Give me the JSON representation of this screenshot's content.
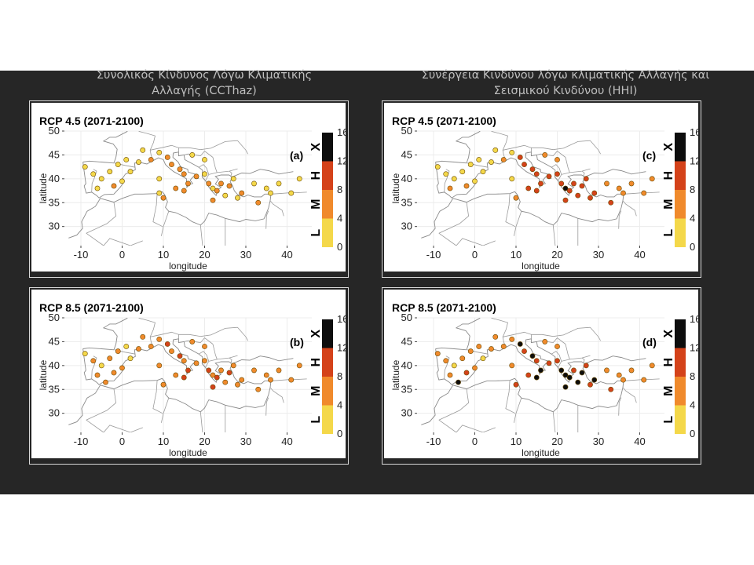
{
  "titles": {
    "left": "Συνολικός Κίνδυνος Λόγω Κλιματικής Αλλαγής (CCThaz)",
    "right": "Συνέργεια Κινδύνου λόγω κλιματικής Αλλαγής και Σεισμικού Κινδύνου (HHI)"
  },
  "chart_data": [
    {
      "type": "scatter",
      "panel": "(a)",
      "title": "RCP 4.5 (2071-2100)",
      "xlabel": "longitude",
      "ylabel": "latitude",
      "xlim": [
        -14,
        46
      ],
      "ylim": [
        26,
        50
      ],
      "xticks": [
        "-10",
        "0",
        "10",
        "20",
        "30",
        "40"
      ],
      "yticks": [
        "30",
        "35",
        "40",
        "45",
        "50"
      ],
      "scale": {
        "ticks": [
          "0",
          "4",
          "8",
          "12",
          "16"
        ],
        "classes": [
          "L",
          "M",
          "H",
          "X"
        ],
        "colors": [
          "#f4d84a",
          "#f08a2c",
          "#d4421a",
          "#0d0d0d"
        ]
      },
      "points": [
        {
          "x": -9,
          "y": 42.5,
          "v": 3
        },
        {
          "x": -7,
          "y": 41,
          "v": 3
        },
        {
          "x": -5,
          "y": 40,
          "v": 2
        },
        {
          "x": -3,
          "y": 41.5,
          "v": 3
        },
        {
          "x": -6,
          "y": 38,
          "v": 3
        },
        {
          "x": -2,
          "y": 38.5,
          "v": 5
        },
        {
          "x": 0,
          "y": 39.5,
          "v": 3
        },
        {
          "x": 2,
          "y": 41.5,
          "v": 2
        },
        {
          "x": 4,
          "y": 43.5,
          "v": 3
        },
        {
          "x": 7,
          "y": 44,
          "v": 5
        },
        {
          "x": 9,
          "y": 45.5,
          "v": 3
        },
        {
          "x": 11,
          "y": 44.5,
          "v": 6
        },
        {
          "x": 12,
          "y": 43,
          "v": 5
        },
        {
          "x": 14,
          "y": 42,
          "v": 6
        },
        {
          "x": 15,
          "y": 41,
          "v": 5
        },
        {
          "x": 16,
          "y": 39,
          "v": 6
        },
        {
          "x": 13,
          "y": 38,
          "v": 5
        },
        {
          "x": 15,
          "y": 37.5,
          "v": 6
        },
        {
          "x": 9,
          "y": 40,
          "v": 3
        },
        {
          "x": 9,
          "y": 37,
          "v": 3
        },
        {
          "x": 10,
          "y": 36,
          "v": 5
        },
        {
          "x": 18,
          "y": 40.5,
          "v": 5
        },
        {
          "x": 20,
          "y": 41,
          "v": 3
        },
        {
          "x": 21,
          "y": 39,
          "v": 5
        },
        {
          "x": 22,
          "y": 38,
          "v": 3
        },
        {
          "x": 23,
          "y": 37.5,
          "v": 5
        },
        {
          "x": 24,
          "y": 39,
          "v": 5
        },
        {
          "x": 25,
          "y": 36.5,
          "v": 3
        },
        {
          "x": 26,
          "y": 38.5,
          "v": 6
        },
        {
          "x": 27,
          "y": 40,
          "v": 3
        },
        {
          "x": 29,
          "y": 37,
          "v": 5
        },
        {
          "x": 32,
          "y": 39,
          "v": 3
        },
        {
          "x": 35,
          "y": 38,
          "v": 3
        },
        {
          "x": 38,
          "y": 39,
          "v": 3
        },
        {
          "x": 41,
          "y": 37,
          "v": 3
        },
        {
          "x": 28,
          "y": 36,
          "v": 3
        },
        {
          "x": 33,
          "y": 35,
          "v": 5
        },
        {
          "x": 36,
          "y": 37,
          "v": 3
        },
        {
          "x": 22,
          "y": 35.5,
          "v": 5
        },
        {
          "x": 20,
          "y": 44,
          "v": 3
        },
        {
          "x": 17,
          "y": 45,
          "v": 3
        },
        {
          "x": 5,
          "y": 46,
          "v": 3
        },
        {
          "x": 1,
          "y": 44,
          "v": 2
        },
        {
          "x": -1,
          "y": 43,
          "v": 3
        },
        {
          "x": 43,
          "y": 40,
          "v": 3
        }
      ]
    },
    {
      "type": "scatter",
      "panel": "(b)",
      "title": "RCP 8.5 (2071-2100)",
      "xlabel": "longitude",
      "ylabel": "latitude",
      "xlim": [
        -14,
        46
      ],
      "ylim": [
        26,
        50
      ],
      "xticks": [
        "-10",
        "0",
        "10",
        "20",
        "30",
        "40"
      ],
      "yticks": [
        "30",
        "35",
        "40",
        "45",
        "50"
      ],
      "scale": {
        "ticks": [
          "0",
          "4",
          "8",
          "12",
          "16"
        ],
        "classes": [
          "L",
          "M",
          "H",
          "X"
        ],
        "colors": [
          "#f4d84a",
          "#f08a2c",
          "#d4421a",
          "#0d0d0d"
        ]
      },
      "points": [
        {
          "x": -9,
          "y": 42.5,
          "v": 3
        },
        {
          "x": -7,
          "y": 41,
          "v": 5
        },
        {
          "x": -5,
          "y": 40,
          "v": 3
        },
        {
          "x": -3,
          "y": 41.5,
          "v": 5
        },
        {
          "x": -6,
          "y": 38,
          "v": 5
        },
        {
          "x": -2,
          "y": 38.5,
          "v": 6
        },
        {
          "x": -4,
          "y": 36.5,
          "v": 6
        },
        {
          "x": 0,
          "y": 39.5,
          "v": 5
        },
        {
          "x": 2,
          "y": 41.5,
          "v": 3
        },
        {
          "x": 4,
          "y": 43.5,
          "v": 5
        },
        {
          "x": 7,
          "y": 44,
          "v": 6
        },
        {
          "x": 9,
          "y": 45.5,
          "v": 5
        },
        {
          "x": 11,
          "y": 44.5,
          "v": 9
        },
        {
          "x": 12,
          "y": 43,
          "v": 6
        },
        {
          "x": 14,
          "y": 42,
          "v": 9
        },
        {
          "x": 15,
          "y": 41,
          "v": 6
        },
        {
          "x": 16,
          "y": 39,
          "v": 9
        },
        {
          "x": 13,
          "y": 38,
          "v": 6
        },
        {
          "x": 15,
          "y": 37.5,
          "v": 9
        },
        {
          "x": 9,
          "y": 40,
          "v": 5
        },
        {
          "x": 10,
          "y": 36,
          "v": 6
        },
        {
          "x": 18,
          "y": 40.5,
          "v": 6
        },
        {
          "x": 20,
          "y": 41,
          "v": 5
        },
        {
          "x": 21,
          "y": 39,
          "v": 9
        },
        {
          "x": 22,
          "y": 38,
          "v": 6
        },
        {
          "x": 23,
          "y": 37.5,
          "v": 9
        },
        {
          "x": 24,
          "y": 39,
          "v": 6
        },
        {
          "x": 25,
          "y": 36.5,
          "v": 5
        },
        {
          "x": 26,
          "y": 38.5,
          "v": 9
        },
        {
          "x": 27,
          "y": 40,
          "v": 5
        },
        {
          "x": 29,
          "y": 37,
          "v": 6
        },
        {
          "x": 32,
          "y": 39,
          "v": 5
        },
        {
          "x": 35,
          "y": 38,
          "v": 5
        },
        {
          "x": 38,
          "y": 39,
          "v": 5
        },
        {
          "x": 41,
          "y": 37,
          "v": 5
        },
        {
          "x": 28,
          "y": 36,
          "v": 5
        },
        {
          "x": 33,
          "y": 35,
          "v": 6
        },
        {
          "x": 36,
          "y": 37,
          "v": 5
        },
        {
          "x": 22,
          "y": 35.5,
          "v": 9
        },
        {
          "x": 20,
          "y": 44,
          "v": 5
        },
        {
          "x": 17,
          "y": 45,
          "v": 5
        },
        {
          "x": 5,
          "y": 46,
          "v": 5
        },
        {
          "x": 1,
          "y": 44,
          "v": 3
        },
        {
          "x": -1,
          "y": 43,
          "v": 5
        },
        {
          "x": 43,
          "y": 40,
          "v": 5
        }
      ]
    },
    {
      "type": "scatter",
      "panel": "(c)",
      "title": "RCP 4.5 (2071-2100)",
      "xlabel": "longitude",
      "ylabel": "latitude",
      "xlim": [
        -14,
        46
      ],
      "ylim": [
        26,
        50
      ],
      "xticks": [
        "-10",
        "0",
        "10",
        "20",
        "30",
        "40"
      ],
      "yticks": [
        "30",
        "35",
        "40",
        "45",
        "50"
      ],
      "scale": {
        "ticks": [
          "0",
          "4",
          "8",
          "12",
          "16"
        ],
        "classes": [
          "L",
          "M",
          "H",
          "X"
        ],
        "colors": [
          "#f4d84a",
          "#f08a2c",
          "#d4421a",
          "#0d0d0d"
        ]
      },
      "points": [
        {
          "x": -9,
          "y": 42.5,
          "v": 3
        },
        {
          "x": -7,
          "y": 41,
          "v": 3
        },
        {
          "x": -5,
          "y": 40,
          "v": 2
        },
        {
          "x": -3,
          "y": 41.5,
          "v": 3
        },
        {
          "x": -6,
          "y": 38,
          "v": 5
        },
        {
          "x": -2,
          "y": 38.5,
          "v": 5
        },
        {
          "x": 0,
          "y": 39.5,
          "v": 3
        },
        {
          "x": 2,
          "y": 41.5,
          "v": 3
        },
        {
          "x": 4,
          "y": 43.5,
          "v": 3
        },
        {
          "x": 7,
          "y": 44,
          "v": 5
        },
        {
          "x": 9,
          "y": 45.5,
          "v": 3
        },
        {
          "x": 11,
          "y": 44.5,
          "v": 9
        },
        {
          "x": 12,
          "y": 43,
          "v": 9
        },
        {
          "x": 14,
          "y": 42,
          "v": 9
        },
        {
          "x": 15,
          "y": 41,
          "v": 9
        },
        {
          "x": 16,
          "y": 39,
          "v": 9
        },
        {
          "x": 13,
          "y": 38,
          "v": 9
        },
        {
          "x": 15,
          "y": 37.5,
          "v": 9
        },
        {
          "x": 9,
          "y": 40,
          "v": 3
        },
        {
          "x": 10,
          "y": 36,
          "v": 5
        },
        {
          "x": 18,
          "y": 40.5,
          "v": 9
        },
        {
          "x": 20,
          "y": 41,
          "v": 9
        },
        {
          "x": 21,
          "y": 39,
          "v": 9
        },
        {
          "x": 22,
          "y": 38,
          "v": 13
        },
        {
          "x": 23,
          "y": 37.5,
          "v": 9
        },
        {
          "x": 24,
          "y": 39,
          "v": 9
        },
        {
          "x": 25,
          "y": 36.5,
          "v": 9
        },
        {
          "x": 26,
          "y": 38.5,
          "v": 9
        },
        {
          "x": 27,
          "y": 40,
          "v": 9
        },
        {
          "x": 29,
          "y": 37,
          "v": 9
        },
        {
          "x": 32,
          "y": 39,
          "v": 5
        },
        {
          "x": 35,
          "y": 38,
          "v": 5
        },
        {
          "x": 38,
          "y": 39,
          "v": 5
        },
        {
          "x": 41,
          "y": 37,
          "v": 5
        },
        {
          "x": 28,
          "y": 36,
          "v": 9
        },
        {
          "x": 33,
          "y": 35,
          "v": 9
        },
        {
          "x": 36,
          "y": 37,
          "v": 5
        },
        {
          "x": 22,
          "y": 35.5,
          "v": 9
        },
        {
          "x": 20,
          "y": 44,
          "v": 5
        },
        {
          "x": 17,
          "y": 45,
          "v": 5
        },
        {
          "x": 5,
          "y": 46,
          "v": 3
        },
        {
          "x": 1,
          "y": 44,
          "v": 3
        },
        {
          "x": -1,
          "y": 43,
          "v": 3
        },
        {
          "x": 43,
          "y": 40,
          "v": 5
        }
      ]
    },
    {
      "type": "scatter",
      "panel": "(d)",
      "title": "RCP 8.5 (2071-2100)",
      "xlabel": "longitude",
      "ylabel": "latitude",
      "xlim": [
        -14,
        46
      ],
      "ylim": [
        26,
        50
      ],
      "xticks": [
        "-10",
        "0",
        "10",
        "20",
        "30",
        "40"
      ],
      "yticks": [
        "30",
        "35",
        "40",
        "45",
        "50"
      ],
      "scale": {
        "ticks": [
          "0",
          "4",
          "8",
          "12",
          "16"
        ],
        "classes": [
          "L",
          "M",
          "H",
          "X"
        ],
        "colors": [
          "#f4d84a",
          "#f08a2c",
          "#d4421a",
          "#0d0d0d"
        ]
      },
      "points": [
        {
          "x": -9,
          "y": 42.5,
          "v": 5
        },
        {
          "x": -7,
          "y": 41,
          "v": 5
        },
        {
          "x": -5,
          "y": 40,
          "v": 3
        },
        {
          "x": -3,
          "y": 41.5,
          "v": 5
        },
        {
          "x": -6,
          "y": 38,
          "v": 6
        },
        {
          "x": -2,
          "y": 38.5,
          "v": 9
        },
        {
          "x": -4,
          "y": 36.5,
          "v": 13
        },
        {
          "x": 0,
          "y": 39.5,
          "v": 5
        },
        {
          "x": 2,
          "y": 41.5,
          "v": 3
        },
        {
          "x": 4,
          "y": 43.5,
          "v": 5
        },
        {
          "x": 7,
          "y": 44,
          "v": 6
        },
        {
          "x": 9,
          "y": 45.5,
          "v": 5
        },
        {
          "x": 11,
          "y": 44.5,
          "v": 13
        },
        {
          "x": 12,
          "y": 43,
          "v": 9
        },
        {
          "x": 14,
          "y": 42,
          "v": 13
        },
        {
          "x": 15,
          "y": 41,
          "v": 9
        },
        {
          "x": 16,
          "y": 39,
          "v": 13
        },
        {
          "x": 13,
          "y": 38,
          "v": 9
        },
        {
          "x": 15,
          "y": 37.5,
          "v": 13
        },
        {
          "x": 9,
          "y": 40,
          "v": 5
        },
        {
          "x": 10,
          "y": 36,
          "v": 9
        },
        {
          "x": 18,
          "y": 40.5,
          "v": 9
        },
        {
          "x": 20,
          "y": 41,
          "v": 9
        },
        {
          "x": 21,
          "y": 39,
          "v": 13
        },
        {
          "x": 22,
          "y": 38,
          "v": 13
        },
        {
          "x": 23,
          "y": 37.5,
          "v": 13
        },
        {
          "x": 24,
          "y": 39,
          "v": 9
        },
        {
          "x": 25,
          "y": 36.5,
          "v": 13
        },
        {
          "x": 26,
          "y": 38.5,
          "v": 13
        },
        {
          "x": 27,
          "y": 40,
          "v": 9
        },
        {
          "x": 29,
          "y": 37,
          "v": 13
        },
        {
          "x": 32,
          "y": 39,
          "v": 6
        },
        {
          "x": 35,
          "y": 38,
          "v": 6
        },
        {
          "x": 38,
          "y": 39,
          "v": 6
        },
        {
          "x": 41,
          "y": 37,
          "v": 6
        },
        {
          "x": 28,
          "y": 36,
          "v": 9
        },
        {
          "x": 33,
          "y": 35,
          "v": 9
        },
        {
          "x": 36,
          "y": 37,
          "v": 6
        },
        {
          "x": 22,
          "y": 35.5,
          "v": 13
        },
        {
          "x": 20,
          "y": 44,
          "v": 6
        },
        {
          "x": 17,
          "y": 45,
          "v": 6
        },
        {
          "x": 5,
          "y": 46,
          "v": 5
        },
        {
          "x": 1,
          "y": 44,
          "v": 5
        },
        {
          "x": -1,
          "y": 43,
          "v": 5
        },
        {
          "x": 43,
          "y": 40,
          "v": 6
        }
      ]
    }
  ]
}
